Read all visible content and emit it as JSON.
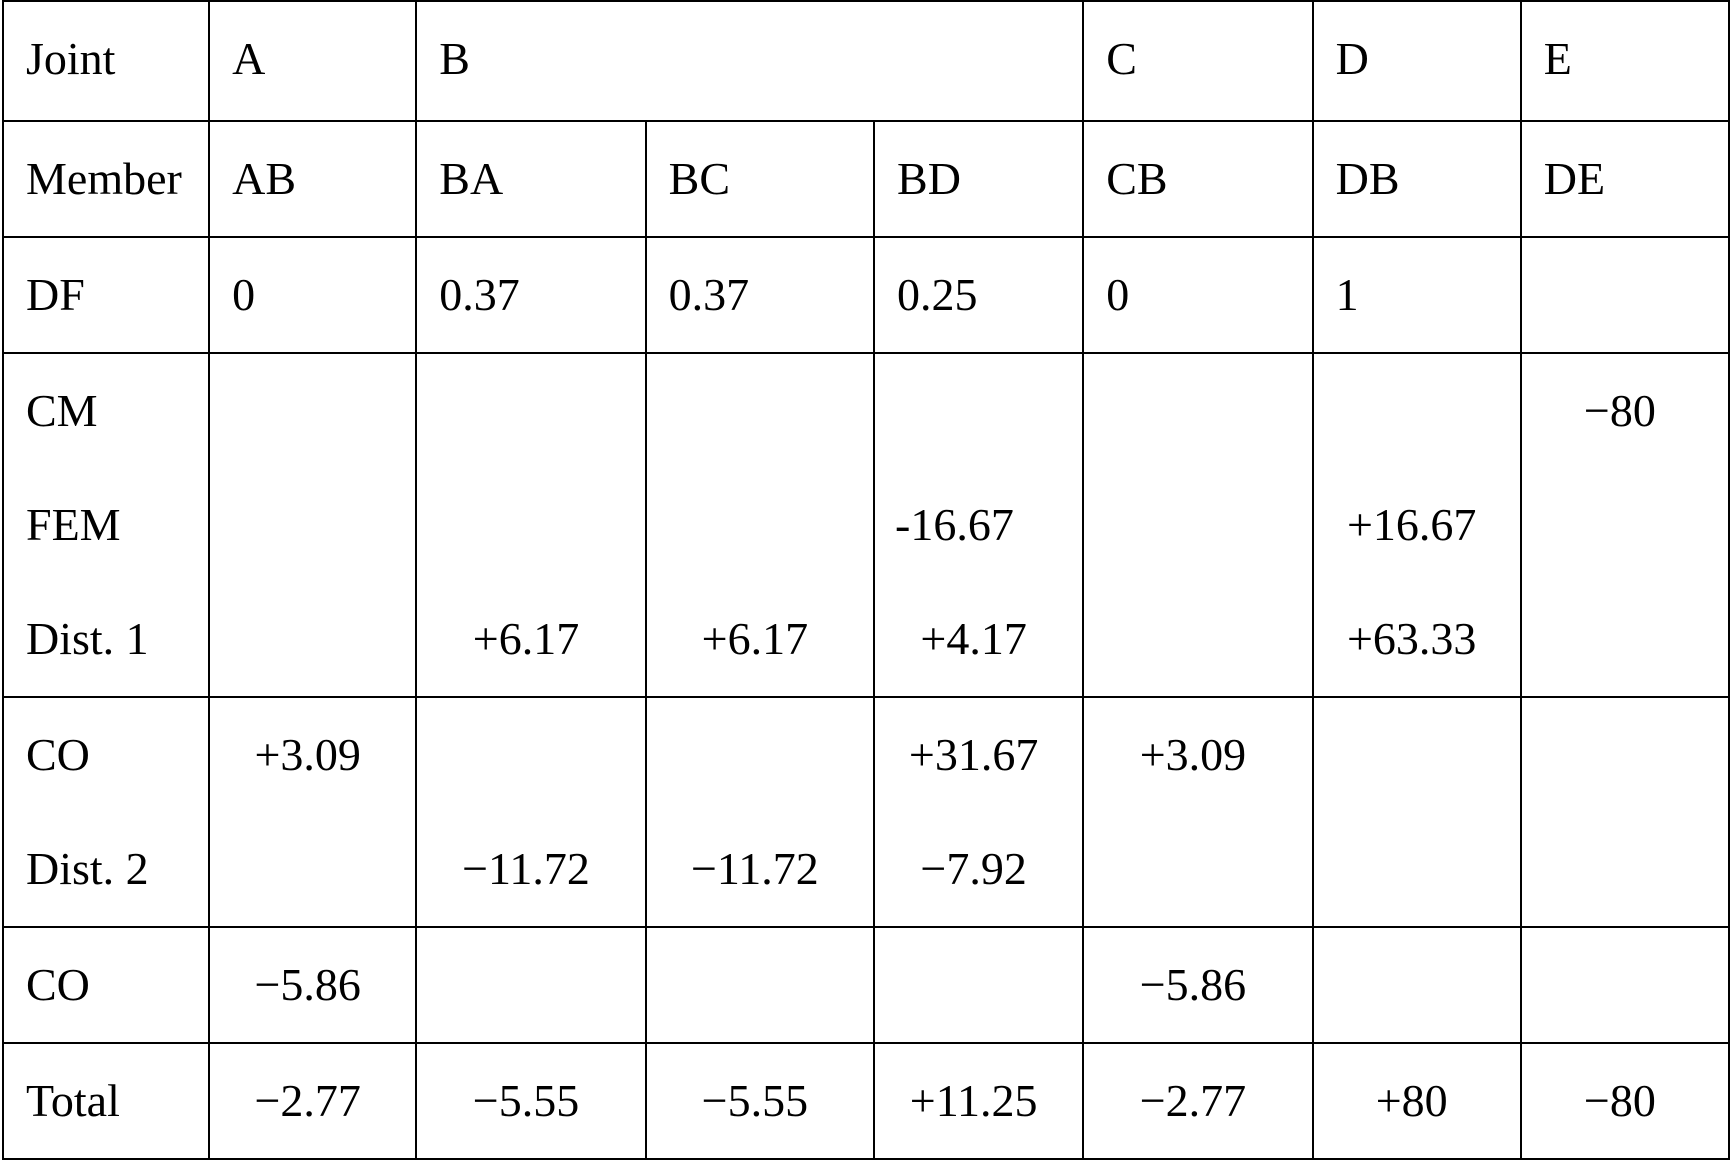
{
  "table": {
    "joints": {
      "label": "Joint",
      "A": "A",
      "B": "B",
      "C": "C",
      "D": "D",
      "E": "E"
    },
    "members": {
      "label": "Member",
      "AB": "AB",
      "BA": "BA",
      "BC": "BC",
      "BD": "BD",
      "CB": "CB",
      "DB": "DB",
      "DE": "DE"
    },
    "df": {
      "label": "DF",
      "AB": "0",
      "BA": "0.37",
      "BC": "0.37",
      "BD": "0.25",
      "CB": "0",
      "DB": "1",
      "DE": ""
    },
    "block1": {
      "labels": [
        "CM",
        "FEM",
        "Dist. 1"
      ],
      "AB": [
        "",
        "",
        ""
      ],
      "BA": [
        "",
        "",
        "+6.17"
      ],
      "BC": [
        "",
        "",
        "+6.17"
      ],
      "BD": [
        "",
        "-16.67",
        "+4.17"
      ],
      "CB": [
        "",
        "",
        ""
      ],
      "DB": [
        "",
        "+16.67",
        "+63.33"
      ],
      "DE": [
        "−80",
        "",
        ""
      ]
    },
    "block2": {
      "labels": [
        "CO",
        "Dist. 2"
      ],
      "AB": [
        "+3.09",
        ""
      ],
      "BA": [
        "",
        "−11.72"
      ],
      "BC": [
        "",
        "−11.72"
      ],
      "BD": [
        "+31.67",
        "−7.92"
      ],
      "CB": [
        "+3.09",
        ""
      ],
      "DB": [
        "",
        ""
      ],
      "DE": [
        "",
        ""
      ]
    },
    "co2": {
      "label": "CO",
      "AB": "−5.86",
      "BA": "",
      "BC": "",
      "BD": "",
      "CB": "−5.86",
      "DB": "",
      "DE": ""
    },
    "total": {
      "label": "Total",
      "AB": "−2.77",
      "BA": "−5.55",
      "BC": "−5.55",
      "BD": "+11.25",
      "CB": "−2.77",
      "DB": "+80",
      "DE": "−80"
    }
  }
}
